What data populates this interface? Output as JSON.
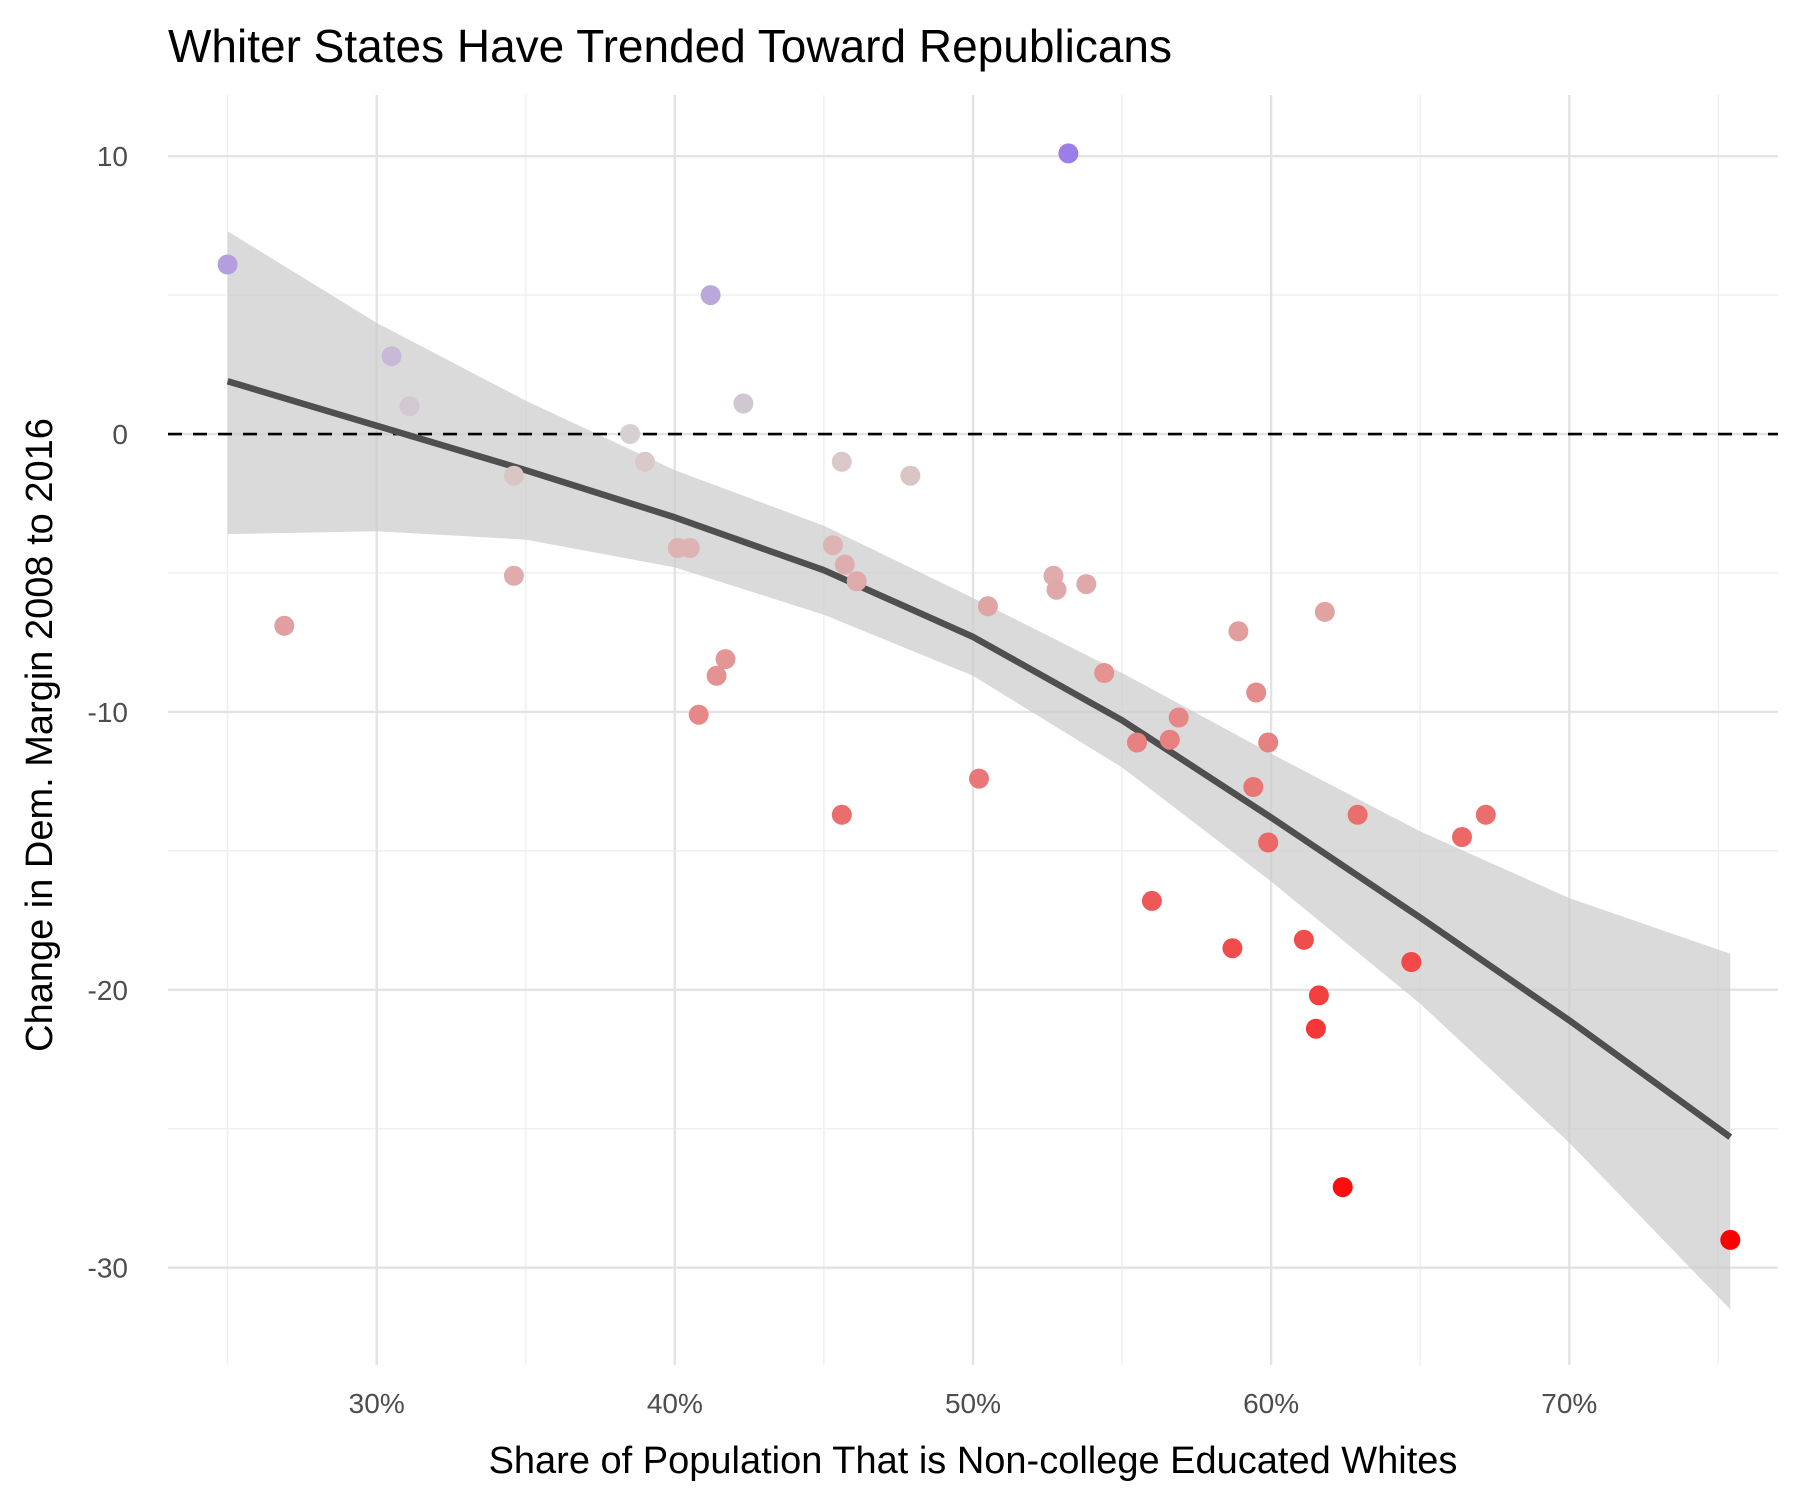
{
  "chart_data": {
    "type": "scatter",
    "title": "Whiter States Have Trended Toward Republicans",
    "xlabel": "Share of Population That is Non-college Educated Whites",
    "ylabel": "Change in Dem. Margin 2008 to 2016",
    "xlim": [
      23,
      77
    ],
    "ylim": [
      -33.5,
      12.2
    ],
    "x_ticks": [
      30,
      40,
      50,
      60,
      70
    ],
    "x_tick_labels": [
      "30%",
      "40%",
      "50%",
      "60%",
      "70%"
    ],
    "y_ticks": [
      -30,
      -20,
      -10,
      0,
      10
    ],
    "y_tick_labels": [
      "-30",
      "-20",
      "-10",
      "0",
      "10"
    ],
    "grid": true,
    "legend": "none",
    "reference_line": {
      "y": 0,
      "style": "dashed",
      "color": "#000000"
    },
    "point_colors": {
      "high": "#9b7ee8",
      "neutral": "#d8d0d0",
      "low": "#ff0000"
    },
    "points": [
      {
        "x": 25.0,
        "y": 6.1
      },
      {
        "x": 26.9,
        "y": -6.9
      },
      {
        "x": 30.5,
        "y": 2.8
      },
      {
        "x": 31.1,
        "y": 1.0
      },
      {
        "x": 34.6,
        "y": -1.5
      },
      {
        "x": 34.6,
        "y": -5.1
      },
      {
        "x": 38.5,
        "y": 0.0
      },
      {
        "x": 39.0,
        "y": -1.0
      },
      {
        "x": 40.1,
        "y": -4.1
      },
      {
        "x": 40.5,
        "y": -4.1
      },
      {
        "x": 40.8,
        "y": -10.1
      },
      {
        "x": 41.2,
        "y": 5.0
      },
      {
        "x": 41.4,
        "y": -8.7
      },
      {
        "x": 41.7,
        "y": -8.1
      },
      {
        "x": 42.3,
        "y": 1.1
      },
      {
        "x": 45.3,
        "y": -4.0
      },
      {
        "x": 45.6,
        "y": -1.0
      },
      {
        "x": 45.6,
        "y": -13.7
      },
      {
        "x": 45.7,
        "y": -4.7
      },
      {
        "x": 46.1,
        "y": -5.3
      },
      {
        "x": 47.9,
        "y": -1.5
      },
      {
        "x": 50.2,
        "y": -12.4
      },
      {
        "x": 50.5,
        "y": -6.2
      },
      {
        "x": 52.7,
        "y": -5.1
      },
      {
        "x": 52.8,
        "y": -5.6
      },
      {
        "x": 53.2,
        "y": 10.1
      },
      {
        "x": 53.8,
        "y": -5.4
      },
      {
        "x": 54.4,
        "y": -8.6
      },
      {
        "x": 55.5,
        "y": -11.1
      },
      {
        "x": 56.0,
        "y": -16.8
      },
      {
        "x": 56.6,
        "y": -11.0
      },
      {
        "x": 56.9,
        "y": -10.2
      },
      {
        "x": 58.7,
        "y": -18.5
      },
      {
        "x": 58.9,
        "y": -7.1
      },
      {
        "x": 59.4,
        "y": -12.7
      },
      {
        "x": 59.5,
        "y": -9.3
      },
      {
        "x": 59.9,
        "y": -14.7
      },
      {
        "x": 59.9,
        "y": -11.1
      },
      {
        "x": 61.1,
        "y": -18.2
      },
      {
        "x": 61.5,
        "y": -21.4
      },
      {
        "x": 61.6,
        "y": -20.2
      },
      {
        "x": 61.8,
        "y": -6.4
      },
      {
        "x": 62.4,
        "y": -27.1
      },
      {
        "x": 62.9,
        "y": -13.7
      },
      {
        "x": 64.7,
        "y": -19.0
      },
      {
        "x": 66.4,
        "y": -14.5
      },
      {
        "x": 67.2,
        "y": -13.7
      },
      {
        "x": 75.4,
        "y": -29.0
      }
    ],
    "trend": {
      "style": "smooth curve with shaded confidence band",
      "line_color": "#4f4f4f",
      "band_color": "#cccccc",
      "x": [
        25,
        30,
        35,
        40,
        45,
        50,
        55,
        60,
        65,
        70,
        75.4
      ],
      "y": [
        1.9,
        0.3,
        -1.3,
        -3.0,
        -4.9,
        -7.3,
        -10.3,
        -13.8,
        -17.4,
        -21.1,
        -25.3
      ],
      "lower": [
        -3.6,
        -3.5,
        -3.8,
        -4.8,
        -6.5,
        -8.7,
        -12.0,
        -16.1,
        -20.5,
        -25.5,
        -31.5
      ],
      "upper": [
        7.3,
        4.0,
        1.2,
        -1.3,
        -3.3,
        -5.9,
        -8.6,
        -11.5,
        -14.3,
        -16.7,
        -18.7
      ]
    }
  }
}
